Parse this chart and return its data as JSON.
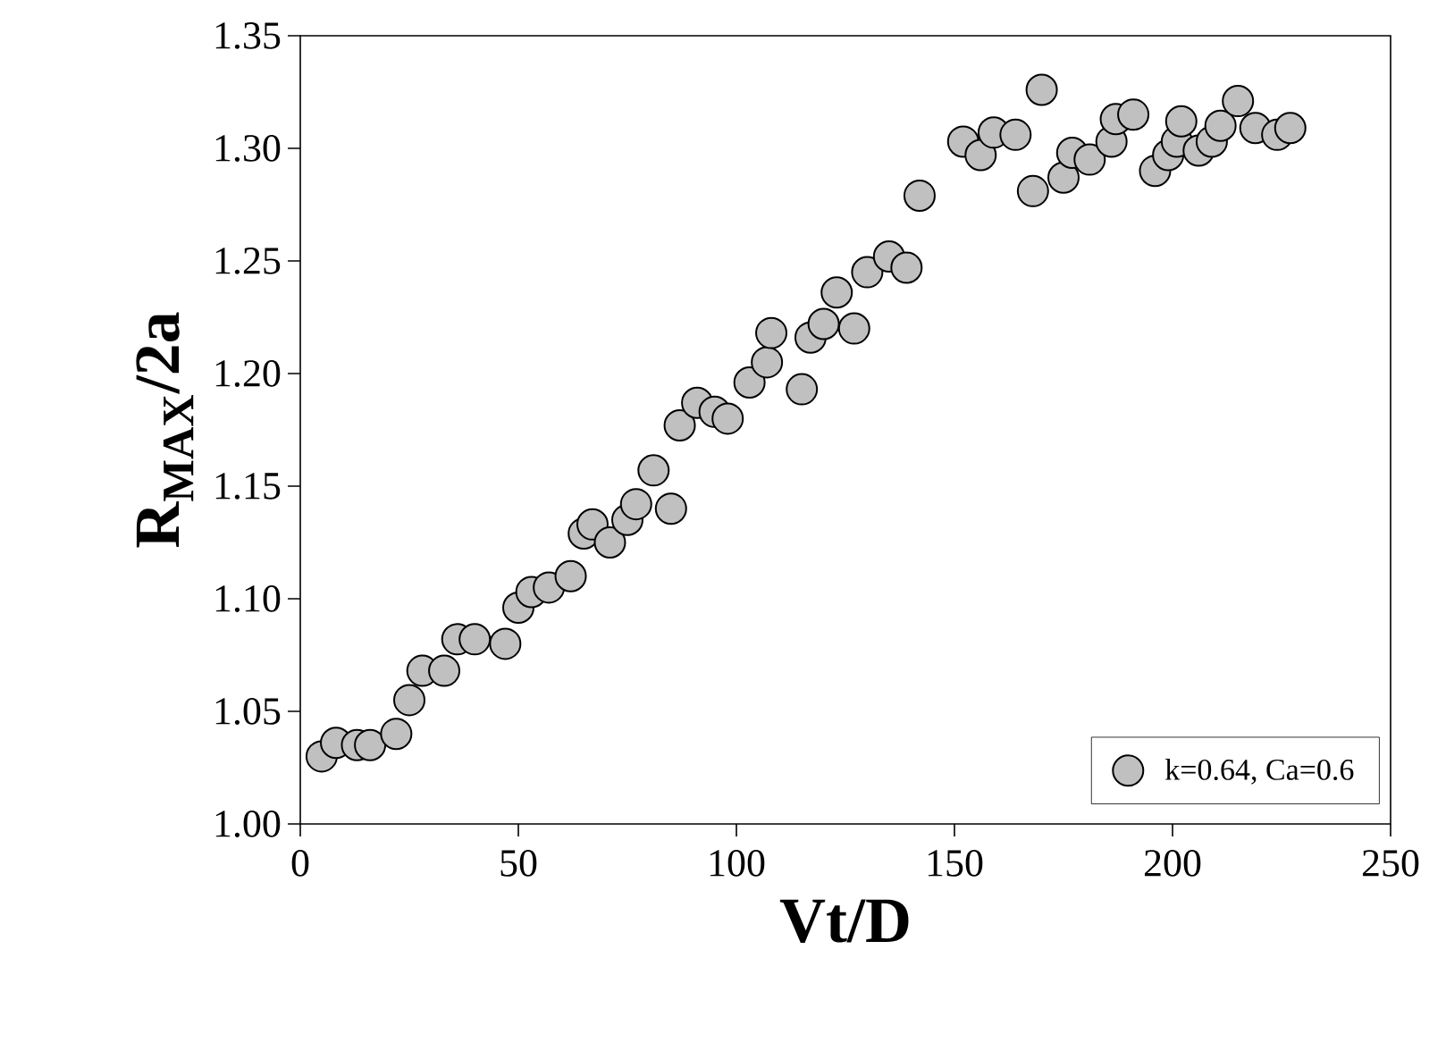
{
  "chart_data": {
    "type": "scatter",
    "xlabel": "Vt/D",
    "ylabel": "R$_{MAX}$/2a",
    "xlim": [
      0,
      250
    ],
    "ylim": [
      1.0,
      1.35
    ],
    "xticks": [
      0,
      50,
      100,
      150,
      200,
      250
    ],
    "yticks": [
      {
        "value": 1.0,
        "label": "1.00"
      },
      {
        "value": 1.05,
        "label": "1.05"
      },
      {
        "value": 1.1,
        "label": "1.10"
      },
      {
        "value": 1.15,
        "label": "1.15"
      },
      {
        "value": 1.2,
        "label": "1.20"
      },
      {
        "value": 1.25,
        "label": "1.25"
      },
      {
        "value": 1.3,
        "label": "1.30"
      },
      {
        "value": 1.35,
        "label": "1.35"
      }
    ],
    "legend": "bottom right",
    "marker": "circle",
    "grid": false,
    "series": [
      {
        "name": "k=0.64, Ca=0.6",
        "color": "#c0c0c0",
        "x": [
          4.9,
          8.2,
          13,
          16,
          22,
          25,
          28,
          33,
          36,
          40,
          47,
          50,
          53,
          57,
          62,
          65,
          67,
          71,
          75,
          77,
          81,
          85,
          87,
          91,
          95,
          98,
          103,
          107,
          108,
          115,
          117,
          120,
          123,
          127,
          130,
          135,
          139,
          142,
          152,
          156,
          159,
          164,
          168,
          170,
          175,
          177,
          181,
          186,
          187,
          191,
          196,
          199,
          201,
          202,
          206,
          209,
          211,
          215,
          219,
          224,
          227
        ],
        "values": [
          1.03,
          1.036,
          1.035,
          1.035,
          1.04,
          1.055,
          1.068,
          1.068,
          1.082,
          1.082,
          1.08,
          1.096,
          1.103,
          1.105,
          1.11,
          1.129,
          1.133,
          1.125,
          1.135,
          1.142,
          1.157,
          1.14,
          1.177,
          1.187,
          1.183,
          1.18,
          1.196,
          1.205,
          1.218,
          1.193,
          1.216,
          1.222,
          1.236,
          1.22,
          1.245,
          1.252,
          1.247,
          1.279,
          1.303,
          1.297,
          1.307,
          1.306,
          1.281,
          1.326,
          1.287,
          1.298,
          1.295,
          1.303,
          1.313,
          1.315,
          1.29,
          1.297,
          1.303,
          1.312,
          1.299,
          1.303,
          1.31,
          1.321,
          1.309,
          1.306,
          1.309
        ]
      }
    ]
  }
}
